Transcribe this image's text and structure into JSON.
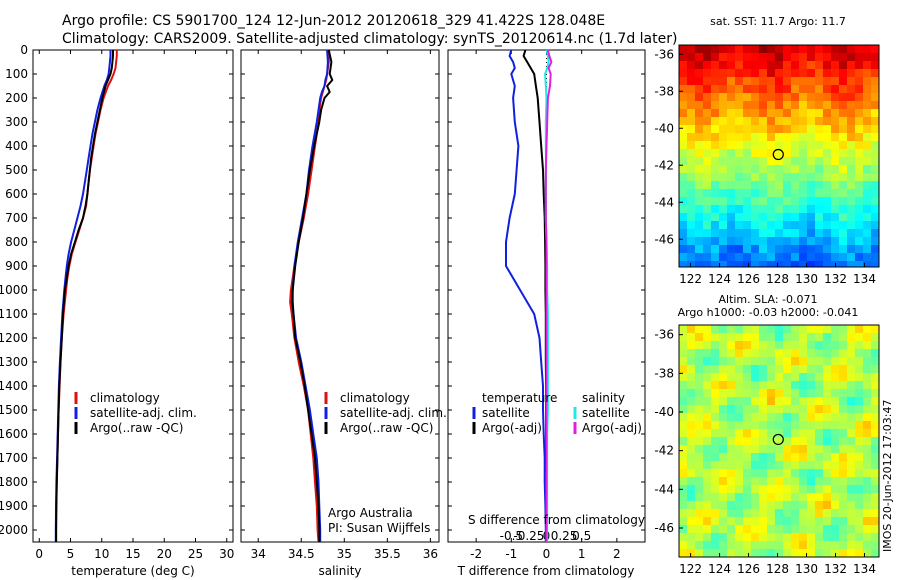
{
  "header": {
    "line1": "Argo profile: CS 5901700_124 12-Jun-2012 20120618_329 41.422S 128.048E",
    "line2": "Climatology: CARS2009. Satellite-adjusted climatology: synTS_20120614.nc (1.7d later)"
  },
  "side_stamp": "IMOS 20-Jun-2012 17:03:47",
  "colors": {
    "clim": "#e01010",
    "sat": "#1020e0",
    "argo": "#000000",
    "cyan": "#20e8e8",
    "magenta": "#e020e0"
  },
  "chart_data": [
    {
      "type": "line",
      "id": "temperature",
      "xlabel": "temperature (deg C)",
      "xlim": [
        -1,
        31
      ],
      "ylim": [
        2050,
        0
      ],
      "xticks": [
        "0",
        "5",
        "10",
        "15",
        "20",
        "25",
        "30"
      ],
      "xtick_values": [
        0,
        5,
        10,
        15,
        20,
        25,
        30
      ],
      "yticks": [
        "0",
        "100",
        "200",
        "300",
        "400",
        "500",
        "600",
        "700",
        "800",
        "900",
        "1000",
        "1100",
        "1200",
        "1300",
        "1400",
        "1500",
        "1600",
        "1700",
        "1800",
        "1900",
        "2000"
      ],
      "legend": [
        "climatology",
        "satellite-adj. clim.",
        "Argo(..raw -QC)"
      ],
      "depth": [
        0,
        25,
        50,
        75,
        100,
        125,
        150,
        200,
        250,
        300,
        350,
        400,
        450,
        500,
        550,
        600,
        650,
        700,
        750,
        800,
        850,
        900,
        950,
        1000,
        1100,
        1200,
        1300,
        1400,
        1500,
        1600,
        1700,
        1800,
        1900,
        2000,
        2050
      ],
      "series": [
        {
          "name": "climatology",
          "color": "clim",
          "values": [
            12.4,
            12.4,
            12.3,
            12.2,
            11.9,
            11.5,
            11.0,
            10.3,
            9.8,
            9.4,
            9.0,
            8.7,
            8.4,
            8.1,
            7.9,
            7.7,
            7.5,
            7.0,
            6.4,
            5.8,
            5.2,
            4.8,
            4.5,
            4.3,
            3.9,
            3.6,
            3.4,
            3.25,
            3.1,
            3.0,
            2.9,
            2.8,
            2.7,
            2.7,
            2.7
          ]
        },
        {
          "name": "satellite",
          "color": "sat",
          "values": [
            11.4,
            11.4,
            11.3,
            11.2,
            11.1,
            10.8,
            10.4,
            9.8,
            9.3,
            8.9,
            8.5,
            8.2,
            7.9,
            7.6,
            7.3,
            7.0,
            6.6,
            6.1,
            5.6,
            5.1,
            4.7,
            4.4,
            4.2,
            4.0,
            3.7,
            3.5,
            3.3,
            3.15,
            3.05,
            2.95,
            2.85,
            2.75,
            2.7,
            2.65,
            2.65
          ]
        },
        {
          "name": "Argo",
          "color": "argo",
          "values": [
            11.8,
            11.8,
            11.7,
            11.6,
            11.4,
            11.0,
            10.6,
            10.1,
            9.7,
            9.3,
            8.9,
            8.6,
            8.3,
            8.1,
            7.9,
            7.7,
            7.4,
            7.0,
            6.3,
            5.7,
            5.1,
            4.7,
            4.4,
            4.1,
            3.8,
            3.6,
            3.4,
            3.2,
            3.1,
            3.0,
            2.9,
            2.8,
            2.75,
            2.7,
            2.7
          ]
        }
      ]
    },
    {
      "type": "line",
      "id": "salinity",
      "xlabel": "salinity",
      "xlim": [
        33.8,
        36.1
      ],
      "ylim": [
        2050,
        0
      ],
      "xticks": [
        "34",
        "34.5",
        "35",
        "35.5",
        "36"
      ],
      "xtick_values": [
        34,
        34.5,
        35,
        35.5,
        36
      ],
      "legend": [
        "climatology",
        "satellite-adj. clim.",
        "Argo(..raw -QC)"
      ],
      "annotation": [
        "Argo Australia",
        "PI: Susan Wijffels"
      ],
      "depth": [
        0,
        50,
        100,
        125,
        150,
        175,
        200,
        250,
        300,
        400,
        500,
        600,
        700,
        800,
        900,
        1000,
        1050,
        1100,
        1200,
        1300,
        1400,
        1500,
        1600,
        1700,
        1800,
        1900,
        2000,
        2050
      ],
      "series": [
        {
          "name": "climatology",
          "color": "clim",
          "values": [
            34.82,
            34.82,
            34.8,
            34.79,
            34.77,
            34.75,
            34.73,
            34.71,
            34.7,
            34.66,
            34.62,
            34.58,
            34.53,
            34.47,
            34.42,
            34.38,
            34.37,
            34.39,
            34.42,
            34.47,
            34.53,
            34.58,
            34.61,
            34.64,
            34.66,
            34.68,
            34.69,
            34.7
          ]
        },
        {
          "name": "satellite",
          "color": "sat",
          "values": [
            34.8,
            34.81,
            34.8,
            34.78,
            34.77,
            34.74,
            34.72,
            34.7,
            34.68,
            34.63,
            34.59,
            34.56,
            34.51,
            34.46,
            34.42,
            34.4,
            34.39,
            34.41,
            34.44,
            34.5,
            34.55,
            34.6,
            34.64,
            34.68,
            34.7,
            34.71,
            34.72,
            34.72
          ]
        },
        {
          "name": "Argo",
          "color": "argo",
          "values": [
            34.82,
            34.85,
            34.83,
            34.86,
            34.8,
            34.83,
            34.77,
            34.73,
            34.71,
            34.65,
            34.6,
            34.56,
            34.52,
            34.47,
            34.43,
            34.4,
            34.4,
            34.41,
            34.43,
            34.49,
            34.54,
            34.58,
            34.62,
            34.66,
            34.68,
            34.7,
            34.71,
            34.71
          ]
        }
      ]
    },
    {
      "type": "line",
      "id": "difference",
      "xlabel": "T difference from climatology",
      "xlim": [
        -2.8,
        2.8
      ],
      "ylim": [
        2050,
        0
      ],
      "xticks": [
        "-2",
        "-1",
        "0",
        "1",
        "2"
      ],
      "xtick_values": [
        -2,
        -1,
        0,
        1,
        2
      ],
      "s_axis_label": "S difference from climatology",
      "s_ticks": [
        "-0.5",
        "-0.25",
        "0",
        "0.25",
        "0.5"
      ],
      "s_tick_values": [
        -0.5,
        -0.25,
        0,
        0.25,
        0.5
      ],
      "legend_headers": [
        "temperature",
        "salinity"
      ],
      "legend": [
        "satellite",
        "Argo(-adj)",
        "satellite",
        "Argo(-adj)"
      ],
      "depth": [
        0,
        25,
        50,
        75,
        100,
        150,
        200,
        300,
        400,
        500,
        600,
        700,
        800,
        900,
        1000,
        1100,
        1200,
        1300,
        1400,
        1500,
        1600,
        1700,
        1800,
        1900,
        2000,
        2050
      ],
      "series": [
        {
          "name": "T satellite",
          "color": "sat",
          "values": [
            -1.0,
            -1.05,
            -0.95,
            -0.9,
            -1.0,
            -0.9,
            -0.95,
            -0.9,
            -0.8,
            -0.85,
            -0.9,
            -1.05,
            -1.15,
            -1.15,
            -0.75,
            -0.35,
            -0.2,
            -0.15,
            -0.1,
            -0.1,
            -0.08,
            -0.05,
            -0.05,
            -0.03,
            -0.02,
            -0.02
          ]
        },
        {
          "name": "T Argo",
          "color": "argo",
          "values": [
            -0.6,
            -0.65,
            -0.55,
            -0.45,
            -0.35,
            -0.3,
            -0.25,
            -0.2,
            -0.15,
            -0.1,
            -0.08,
            -0.05,
            -0.04,
            -0.03,
            -0.03,
            -0.02,
            -0.02,
            -0.02,
            -0.01,
            -0.01,
            -0.01,
            -0.01,
            0.0,
            0.0,
            0.0,
            0.0
          ]
        },
        {
          "name": "S satellite",
          "color": "cyan",
          "values": [
            0.0,
            0.02,
            0.03,
            0.01,
            -0.02,
            -0.01,
            0.0,
            -0.01,
            -0.01,
            -0.005,
            -0.01,
            -0.01,
            0.0,
            0.01,
            0.01,
            0.02,
            0.02,
            0.02,
            0.02,
            0.02,
            0.01,
            0.01,
            0.01,
            0.01,
            0.01,
            0.01
          ]
        },
        {
          "name": "S Argo",
          "color": "magenta",
          "values": [
            0.02,
            0.04,
            0.07,
            0.03,
            0.06,
            0.05,
            0.02,
            0.01,
            0.0,
            -0.01,
            -0.01,
            -0.01,
            0.0,
            0.0,
            0.0,
            0.0,
            0.0,
            0.0,
            0.0,
            0.0,
            0.0,
            0.0,
            0.0,
            0.0,
            0.0,
            0.0
          ]
        }
      ]
    },
    {
      "type": "heatmap",
      "id": "sst_map",
      "title": "sat. SST: 11.7 Argo: 11.7",
      "xticks": [
        "122",
        "124",
        "126",
        "128",
        "130",
        "132",
        "134"
      ],
      "xtick_values": [
        122,
        124,
        126,
        128,
        130,
        132,
        134
      ],
      "yticks": [
        "-36",
        "-38",
        "-40",
        "-42",
        "-44",
        "-46"
      ],
      "ytick_values": [
        -36,
        -38,
        -40,
        -42,
        -44,
        -46
      ],
      "xlim": [
        121.2,
        135
      ],
      "ylim": [
        -47.5,
        -35.5
      ],
      "marker": [
        128.05,
        -41.42
      ]
    },
    {
      "type": "heatmap",
      "id": "sla_map",
      "title": "Altim. SLA: -0.071",
      "subtitle": "Argo h1000: -0.03 h2000: -0.041",
      "xticks": [
        "122",
        "124",
        "126",
        "128",
        "130",
        "132",
        "134"
      ],
      "xtick_values": [
        122,
        124,
        126,
        128,
        130,
        132,
        134
      ],
      "yticks": [
        "-36",
        "-38",
        "-40",
        "-42",
        "-44",
        "-46"
      ],
      "ytick_values": [
        -36,
        -38,
        -40,
        -42,
        -44,
        -46
      ],
      "xlim": [
        121.2,
        135
      ],
      "ylim": [
        -47.5,
        -35.5
      ],
      "marker": [
        128.05,
        -41.42
      ]
    }
  ]
}
